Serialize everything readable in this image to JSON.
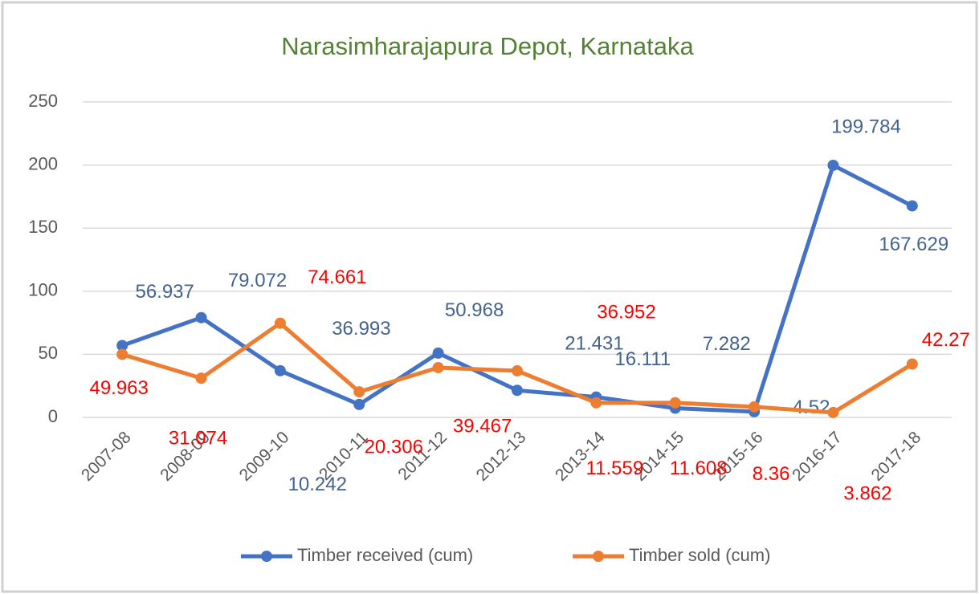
{
  "chart_data": {
    "type": "line",
    "title": "Narasimharajapura  Depot, Karnataka",
    "categories": [
      "2007-08",
      "2008-09",
      "2009-10",
      "2010-11",
      "2011-12",
      "2012-13",
      "2013-14",
      "2014-15",
      "2015-16",
      "2016-17",
      "2017-18"
    ],
    "series": [
      {
        "name": "Timber received (cum)",
        "color": "#4472c4",
        "label_color": "#44648f",
        "values": [
          56.937,
          79.072,
          36.993,
          10.242,
          50.968,
          21.431,
          16.111,
          7.282,
          4.52,
          199.784,
          167.629
        ]
      },
      {
        "name": "Timber sold (cum)",
        "color": "#ed7d31",
        "label_color": "#ff0000",
        "values": [
          49.963,
          31.074,
          74.661,
          20.306,
          39.467,
          36.952,
          11.559,
          11.608,
          8.36,
          3.862,
          42.27
        ]
      }
    ],
    "ylim": [
      0,
      250
    ],
    "yticks": [
      0,
      50,
      100,
      150,
      200,
      250
    ],
    "grid": true,
    "legend": "bottom"
  }
}
